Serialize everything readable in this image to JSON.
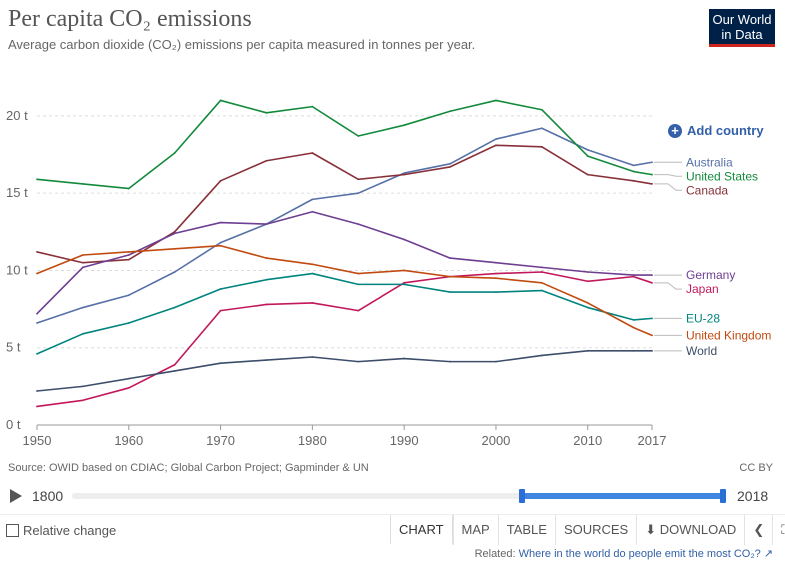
{
  "header": {
    "title": "Per capita CO₂ emissions",
    "subtitle": "Average carbon dioxide (CO₂) emissions per capita measured in tonnes per year.",
    "logo_line1": "Our World",
    "logo_line2": "in Data",
    "add_country_label": "Add country"
  },
  "footer": {
    "source": "Source: OWID based on CDIAC; Global Carbon Project; Gapminder & UN",
    "license": "CC BY",
    "timeline_start": "1800",
    "timeline_end": "2018",
    "relative_change_label": "Relative change",
    "tabs": [
      "CHART",
      "MAP",
      "TABLE",
      "SOURCES",
      "DOWNLOAD"
    ],
    "related_prefix": "Related:",
    "related_link": "Where in the world do people emit the most CO₂?"
  },
  "icons": [
    "plus-icon",
    "play-icon",
    "download-icon",
    "share-icon",
    "fullscreen-icon",
    "external-link-icon"
  ],
  "colors": {
    "brand": "#002147",
    "accent_red": "#ce261e",
    "link": "#3360a9",
    "slider": "#3f86e0"
  },
  "chart_data": {
    "type": "line",
    "title": "Per capita CO₂ emissions",
    "ylim": [
      0,
      22
    ],
    "xlim": [
      1950,
      2017
    ],
    "yticks": [
      0,
      5,
      10,
      15,
      20
    ],
    "ytick_labels": [
      "0 t",
      "5 t",
      "10 t",
      "15 t",
      "20 t"
    ],
    "xticks": [
      1950,
      1960,
      1970,
      1980,
      1990,
      2000,
      2010,
      2017
    ],
    "grid": "horizontal-dashed",
    "legend": "right",
    "x": [
      1950,
      1955,
      1960,
      1965,
      1970,
      1975,
      1980,
      1985,
      1990,
      1995,
      2000,
      2005,
      2010,
      2015,
      2017
    ],
    "series": [
      {
        "name": "Australia",
        "color": "#5670a8",
        "values": [
          6.6,
          7.6,
          8.4,
          9.9,
          11.8,
          13.0,
          14.6,
          15.0,
          16.3,
          16.9,
          18.5,
          19.2,
          17.8,
          16.8,
          17.0
        ]
      },
      {
        "name": "United States",
        "color": "#138a3b",
        "values": [
          15.9,
          15.6,
          15.3,
          17.6,
          21.0,
          20.2,
          20.6,
          18.7,
          19.4,
          20.3,
          21.0,
          20.4,
          17.4,
          16.4,
          16.2
        ]
      },
      {
        "name": "Canada",
        "color": "#883039",
        "values": [
          11.2,
          10.5,
          10.7,
          12.5,
          15.8,
          17.1,
          17.6,
          15.9,
          16.2,
          16.7,
          18.1,
          18.0,
          16.2,
          15.8,
          15.6
        ]
      },
      {
        "name": "Germany",
        "color": "#6d3e91",
        "values": [
          7.2,
          10.2,
          11.0,
          12.4,
          13.1,
          13.0,
          13.8,
          13.0,
          12.0,
          10.8,
          10.5,
          10.2,
          9.9,
          9.7,
          9.7
        ]
      },
      {
        "name": "Japan",
        "color": "#c2185b",
        "values": [
          1.2,
          1.6,
          2.4,
          3.9,
          7.4,
          7.8,
          7.9,
          7.4,
          9.2,
          9.6,
          9.8,
          9.9,
          9.3,
          9.6,
          9.2
        ]
      },
      {
        "name": "EU-28",
        "color": "#00847e",
        "values": [
          4.6,
          5.9,
          6.6,
          7.6,
          8.8,
          9.4,
          9.8,
          9.1,
          9.1,
          8.6,
          8.6,
          8.7,
          7.6,
          6.8,
          6.9
        ]
      },
      {
        "name": "United Kingdom",
        "color": "#c04a10",
        "values": [
          9.8,
          11.0,
          11.2,
          11.4,
          11.6,
          10.8,
          10.4,
          9.8,
          10.0,
          9.6,
          9.5,
          9.2,
          7.9,
          6.3,
          5.8
        ]
      },
      {
        "name": "World",
        "color": "#3d4e6a",
        "values": [
          2.2,
          2.5,
          3.0,
          3.5,
          4.0,
          4.2,
          4.4,
          4.1,
          4.3,
          4.1,
          4.1,
          4.5,
          4.8,
          4.8,
          4.8
        ]
      }
    ]
  }
}
